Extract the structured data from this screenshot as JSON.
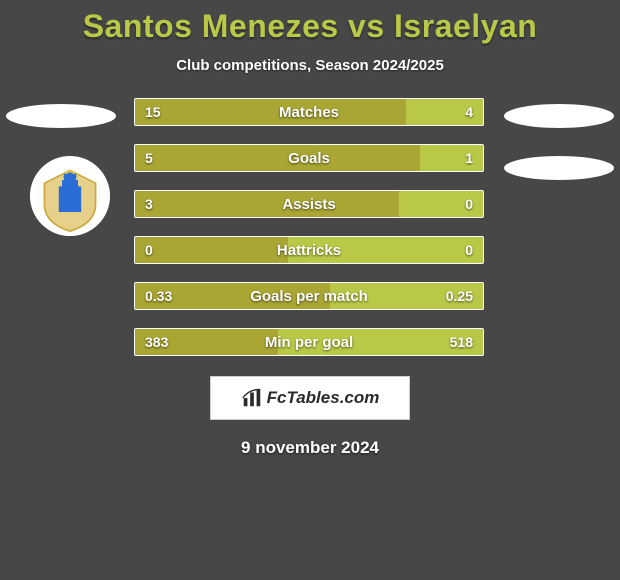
{
  "title": "Santos Menezes vs Israelyan",
  "subtitle": "Club competitions, Season 2024/2025",
  "title_color": "#b9c846",
  "left_fill": "#a9a634",
  "right_fill": "#b9c846",
  "border_color": "#ffffff",
  "bg_color": "#474747",
  "bars": [
    {
      "label": "Matches",
      "left": "15",
      "right": "4",
      "leftPct": 78
    },
    {
      "label": "Goals",
      "left": "5",
      "right": "1",
      "leftPct": 82
    },
    {
      "label": "Assists",
      "left": "3",
      "right": "0",
      "leftPct": 76
    },
    {
      "label": "Hattricks",
      "left": "0",
      "right": "0",
      "leftPct": 44
    },
    {
      "label": "Goals per match",
      "left": "0.33",
      "right": "0.25",
      "leftPct": 56
    },
    {
      "label": "Min per goal",
      "left": "383",
      "right": "518",
      "leftPct": 41
    }
  ],
  "watermark": "FcTables.com",
  "date": "9 november 2024"
}
